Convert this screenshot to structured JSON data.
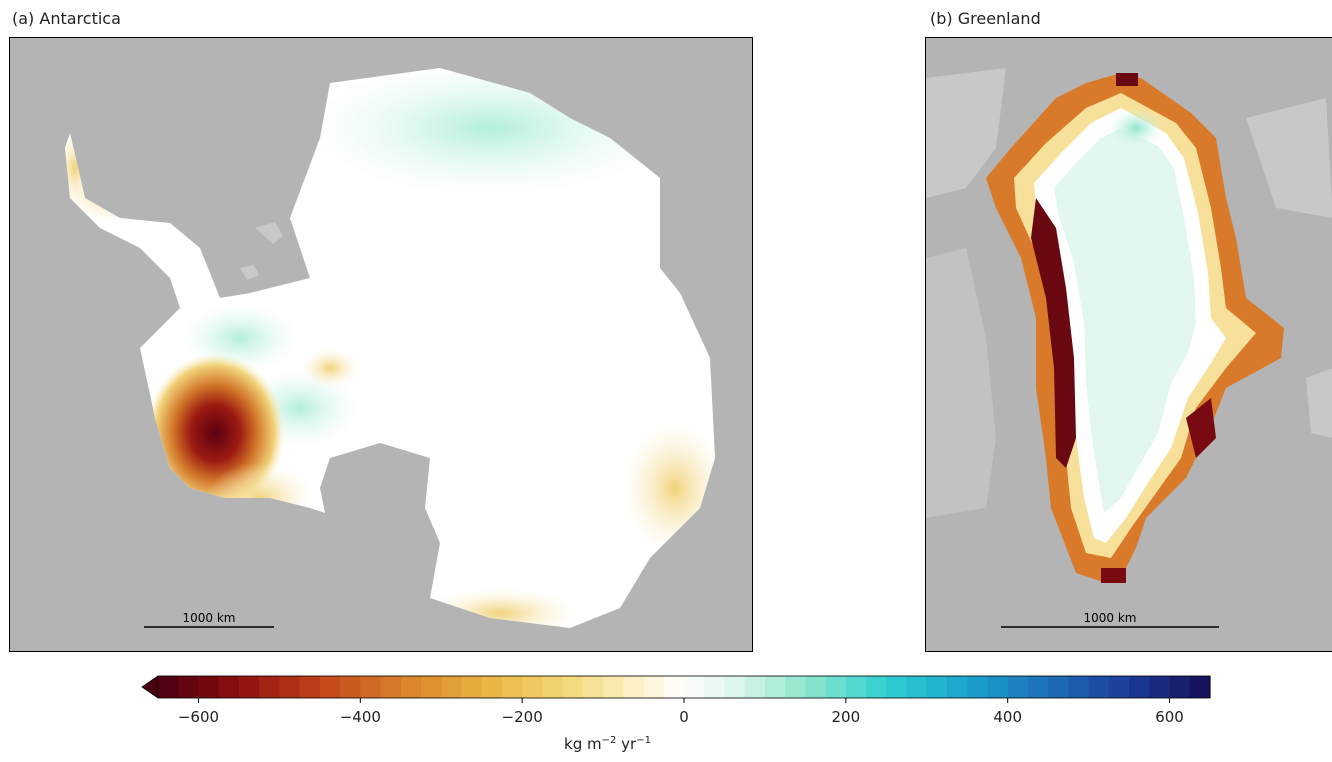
{
  "panels": {
    "antarctica": {
      "title": "(a) Antarctica",
      "scalebar_label": "1000 km"
    },
    "greenland": {
      "title": "(b) Greenland",
      "scalebar_label": "1000 km"
    }
  },
  "colors": {
    "ocean": "#b4b4b4",
    "land_no_data": "#c8c8c8",
    "white": "#ffffff"
  },
  "colorbar": {
    "min": -650,
    "max": 650,
    "extend": "min",
    "n_bins": 52,
    "ticks": [
      -600,
      -400,
      -200,
      0,
      200,
      400,
      600
    ],
    "tick_labels": [
      "−600",
      "−400",
      "−200",
      "0",
      "200",
      "400",
      "600"
    ],
    "label_main": "kg m",
    "label_exp1": "−2",
    "label_mid": " yr",
    "label_exp2": "−1",
    "stops": [
      {
        "v": -650,
        "c": "#4a0010"
      },
      {
        "v": -550,
        "c": "#8c0f0f"
      },
      {
        "v": -450,
        "c": "#c0441a"
      },
      {
        "v": -350,
        "c": "#d97f2a"
      },
      {
        "v": -250,
        "c": "#e8b040"
      },
      {
        "v": -150,
        "c": "#f3d774"
      },
      {
        "v": -60,
        "c": "#fbf1c8"
      },
      {
        "v": 0,
        "c": "#ffffff"
      },
      {
        "v": 60,
        "c": "#dff6ec"
      },
      {
        "v": 150,
        "c": "#8fe6cd"
      },
      {
        "v": 250,
        "c": "#2fd0d0"
      },
      {
        "v": 350,
        "c": "#1aa3cc"
      },
      {
        "v": 450,
        "c": "#1d6fb8"
      },
      {
        "v": 550,
        "c": "#1c3c98"
      },
      {
        "v": 650,
        "c": "#160d57"
      }
    ]
  }
}
